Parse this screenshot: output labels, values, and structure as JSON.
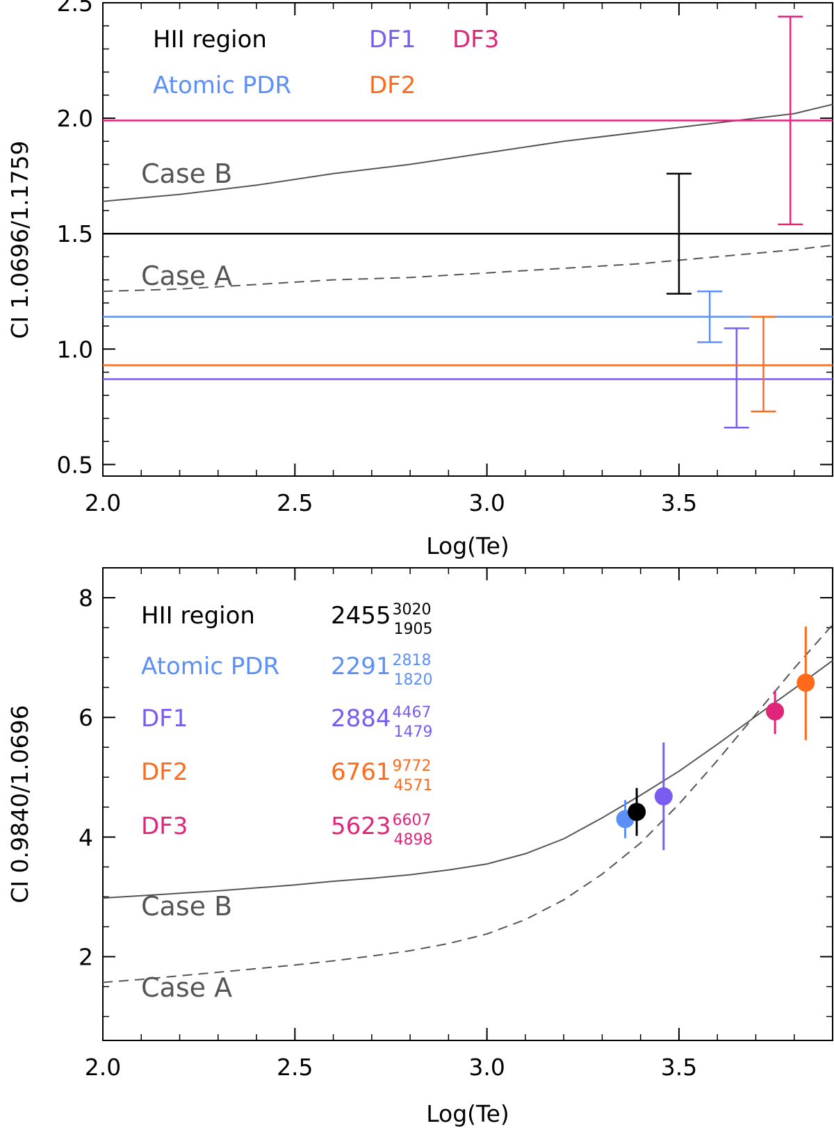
{
  "colors": {
    "hii": "#000000",
    "atomic": "#5b8ff9",
    "df1": "#7b5cf0",
    "df2": "#ff6a1a",
    "df3": "#e0267a",
    "model": "#555555"
  },
  "chart_data": [
    {
      "type": "line",
      "panel": "top",
      "xlabel": "Log(Te)",
      "ylabel": "CI 1.0696/1.1759",
      "xlim": [
        2.0,
        3.9
      ],
      "ylim": [
        0.45,
        2.5
      ],
      "xticks": [
        2.0,
        2.5,
        3.0,
        3.5
      ],
      "xtick_labels": [
        "2.0",
        "2.5",
        "3.0",
        "3.5"
      ],
      "yticks": [
        0.5,
        1.0,
        1.5,
        2.0,
        2.5
      ],
      "ytick_labels": [
        "0.5",
        "1.0",
        "1.5",
        "2.0",
        "2.5"
      ],
      "legend": [
        {
          "label": "HII region",
          "color_key": "hii"
        },
        {
          "label": "DF1",
          "color_key": "df1"
        },
        {
          "label": "DF3",
          "color_key": "df3"
        },
        {
          "label": "Atomic PDR",
          "color_key": "atomic"
        },
        {
          "label": "DF2",
          "color_key": "df2"
        }
      ],
      "case_labels": {
        "case_b": "Case B",
        "case_a": "Case A"
      },
      "models": [
        {
          "name": "Case B",
          "style": "solid",
          "x": [
            2.0,
            2.2,
            2.4,
            2.6,
            2.8,
            3.0,
            3.2,
            3.4,
            3.6,
            3.8,
            3.9
          ],
          "y": [
            1.64,
            1.67,
            1.71,
            1.76,
            1.8,
            1.85,
            1.9,
            1.94,
            1.98,
            2.02,
            2.06
          ]
        },
        {
          "name": "Case A",
          "style": "dashed",
          "x": [
            2.0,
            2.2,
            2.4,
            2.6,
            2.8,
            3.0,
            3.2,
            3.4,
            3.6,
            3.8,
            3.9
          ],
          "y": [
            1.25,
            1.26,
            1.28,
            1.3,
            1.31,
            1.33,
            1.35,
            1.37,
            1.4,
            1.43,
            1.45
          ]
        }
      ],
      "series": [
        {
          "name": "HII region",
          "color_key": "hii",
          "value": 1.5,
          "err_x": 3.5,
          "err_low": 1.24,
          "err_high": 1.76
        },
        {
          "name": "Atomic PDR",
          "color_key": "atomic",
          "value": 1.14,
          "err_x": 3.58,
          "err_low": 1.03,
          "err_high": 1.25
        },
        {
          "name": "DF1",
          "color_key": "df1",
          "value": 0.87,
          "err_x": 3.65,
          "err_low": 0.66,
          "err_high": 1.09
        },
        {
          "name": "DF2",
          "color_key": "df2",
          "value": 0.93,
          "err_x": 3.72,
          "err_low": 0.73,
          "err_high": 1.14
        },
        {
          "name": "DF3",
          "color_key": "df3",
          "value": 1.99,
          "err_x": 3.79,
          "err_low": 1.54,
          "err_high": 2.44
        }
      ]
    },
    {
      "type": "scatter",
      "panel": "bottom",
      "xlabel": "Log(Te)",
      "ylabel": "CI 0.9840/1.0696",
      "xlim": [
        2.0,
        3.9
      ],
      "ylim": [
        0.6,
        8.5
      ],
      "xticks": [
        2.0,
        2.5,
        3.0,
        3.5
      ],
      "xtick_labels": [
        "2.0",
        "2.5",
        "3.0",
        "3.5"
      ],
      "yticks": [
        2,
        4,
        6,
        8
      ],
      "ytick_labels": [
        "2",
        "4",
        "6",
        "8"
      ],
      "legend": [
        {
          "label": "HII region",
          "color_key": "hii",
          "value": "2455",
          "upper": "3020",
          "lower": "1905"
        },
        {
          "label": "Atomic PDR",
          "color_key": "atomic",
          "value": "2291",
          "upper": "2818",
          "lower": "1820"
        },
        {
          "label": "DF1",
          "color_key": "df1",
          "value": "2884",
          "upper": "4467",
          "lower": "1479"
        },
        {
          "label": "DF2",
          "color_key": "df2",
          "value": "6761",
          "upper": "9772",
          "lower": "4571"
        },
        {
          "label": "DF3",
          "color_key": "df3",
          "value": "5623",
          "upper": "6607",
          "lower": "4898"
        }
      ],
      "case_labels": {
        "case_b": "Case B",
        "case_a": "Case A"
      },
      "models": [
        {
          "name": "Case B",
          "style": "solid",
          "x": [
            2.0,
            2.1,
            2.2,
            2.3,
            2.4,
            2.5,
            2.6,
            2.7,
            2.8,
            2.9,
            3.0,
            3.1,
            3.2,
            3.3,
            3.4,
            3.5,
            3.6,
            3.7,
            3.8,
            3.9
          ],
          "y": [
            2.98,
            3.02,
            3.06,
            3.1,
            3.15,
            3.2,
            3.26,
            3.31,
            3.37,
            3.45,
            3.55,
            3.72,
            3.97,
            4.32,
            4.7,
            5.1,
            5.55,
            6.02,
            6.48,
            6.95
          ]
        },
        {
          "name": "Case A",
          "style": "dashed",
          "x": [
            2.0,
            2.1,
            2.2,
            2.3,
            2.4,
            2.5,
            2.6,
            2.7,
            2.8,
            2.9,
            3.0,
            3.1,
            3.2,
            3.3,
            3.4,
            3.5,
            3.6,
            3.7,
            3.8,
            3.9
          ],
          "y": [
            1.57,
            1.62,
            1.68,
            1.74,
            1.8,
            1.86,
            1.93,
            2.01,
            2.1,
            2.22,
            2.38,
            2.62,
            2.95,
            3.38,
            3.9,
            4.55,
            5.28,
            6.05,
            6.82,
            7.55
          ]
        }
      ],
      "points": [
        {
          "name": "Atomic PDR",
          "color_key": "atomic",
          "x": 3.36,
          "y": 4.3,
          "yerr_low": 3.98,
          "yerr_high": 4.62
        },
        {
          "name": "HII region",
          "color_key": "hii",
          "x": 3.39,
          "y": 4.42,
          "yerr_low": 4.02,
          "yerr_high": 4.82
        },
        {
          "name": "DF1",
          "color_key": "df1",
          "x": 3.46,
          "y": 4.68,
          "yerr_low": 3.78,
          "yerr_high": 5.58
        },
        {
          "name": "DF3",
          "color_key": "df3",
          "x": 3.75,
          "y": 6.1,
          "yerr_low": 5.72,
          "yerr_high": 6.45
        },
        {
          "name": "DF2",
          "color_key": "df2",
          "x": 3.83,
          "y": 6.58,
          "yerr_low": 5.62,
          "yerr_high": 7.52
        }
      ]
    }
  ]
}
